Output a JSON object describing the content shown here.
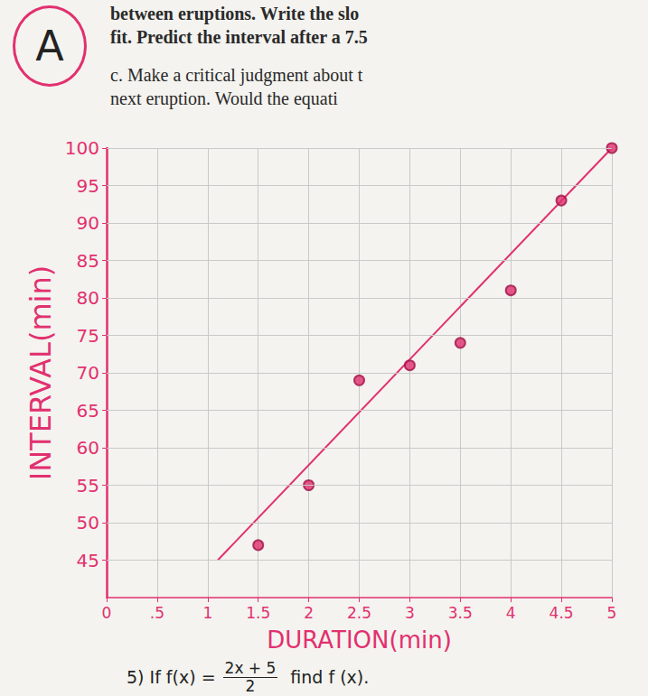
{
  "chart_data": {
    "type": "scatter",
    "x_label": "DURATION(min)",
    "y_label": "INTERVAL(min)",
    "grid": true,
    "xlim": [
      0,
      5
    ],
    "xticks": [
      0,
      {
        "value": 0.5,
        "label": ".5"
      },
      1,
      1.5,
      2,
      2.5,
      3,
      3.5,
      4,
      4.5,
      5
    ],
    "ylim": [
      40,
      100
    ],
    "yticks": [
      45,
      50,
      55,
      60,
      65,
      70,
      75,
      80,
      85,
      90,
      95,
      100
    ],
    "series": [
      {
        "type": "scatter",
        "marker": "circle",
        "color": "#e0306e",
        "x": [
          1.5,
          2,
          2.5,
          3,
          3.5,
          4,
          4.5,
          5
        ],
        "values": [
          47,
          55,
          69,
          71,
          74,
          81,
          93,
          100
        ]
      },
      {
        "type": "line",
        "line_style": "solid",
        "color": "#e0306e",
        "x": [
          1.1,
          5
        ],
        "values": [
          45,
          100
        ]
      }
    ],
    "annotations": {
      "header": [
        "between eruptions. Write the slo",
        "fit. Predict the interval after a 7.5",
        "c. Make a critical judgment about t",
        "next eruption. Would the equati"
      ],
      "mark": "A",
      "problem": {
        "prefix": "5) If f(x) =",
        "numerator": "2x + 5",
        "denominator": "2",
        "suffix": "find f (x)."
      }
    }
  }
}
